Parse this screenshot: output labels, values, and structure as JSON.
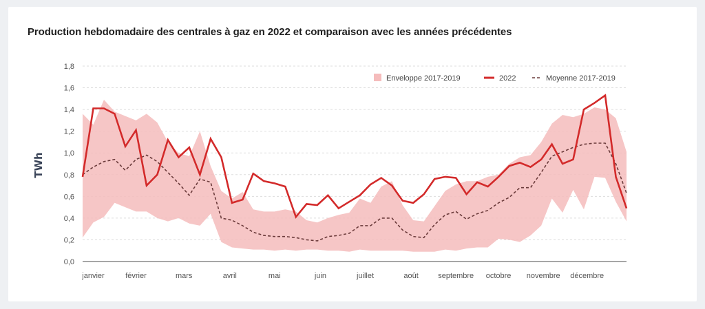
{
  "title": "Production hebdomadaire des centrales à gaz en 2022 et comparaison avec les années précédentes",
  "colors": {
    "line_2022": "#d32a2a",
    "envelope": "#f5bcbc",
    "mean": "#6b3b3b",
    "grid": "#dddddd",
    "axis": "#888888"
  },
  "chart_data": {
    "type": "line",
    "title": "Production hebdomadaire des centrales à gaz en 2022 et comparaison avec les années précédentes",
    "xlabel": "",
    "ylabel": "TWh",
    "ylim": [
      0,
      1.8
    ],
    "yticks": [
      "0,0",
      "0,2",
      "0,4",
      "0,6",
      "0,8",
      "1,0",
      "1,2",
      "1,4",
      "1,6",
      "1,8"
    ],
    "ytick_values": [
      0,
      0.2,
      0.4,
      0.6,
      0.8,
      1.0,
      1.2,
      1.4,
      1.6,
      1.8
    ],
    "grid": true,
    "legend_position": "top-right",
    "x_unit": "week",
    "month_labels": [
      "janvier",
      "février",
      "mars",
      "avril",
      "mai",
      "juin",
      "juillet",
      "août",
      "septembre",
      "octobre",
      "novembre",
      "décembre"
    ],
    "month_label_weeks": [
      2,
      6,
      10.5,
      14.8,
      19,
      23.3,
      27.5,
      31.8,
      36,
      40,
      44.2,
      48.3
    ],
    "x": [
      1,
      2,
      3,
      4,
      5,
      6,
      7,
      8,
      9,
      10,
      11,
      12,
      13,
      14,
      15,
      16,
      17,
      18,
      19,
      20,
      21,
      22,
      23,
      24,
      25,
      26,
      27,
      28,
      29,
      30,
      31,
      32,
      33,
      34,
      35,
      36,
      37,
      38,
      39,
      40,
      41,
      42,
      43,
      44,
      45,
      46,
      47,
      48,
      49,
      50,
      51,
      52
    ],
    "series": [
      {
        "name": "2022",
        "style": "solid",
        "values": [
          0.78,
          1.41,
          1.41,
          1.36,
          1.06,
          1.21,
          0.7,
          0.8,
          1.12,
          0.96,
          1.05,
          0.8,
          1.13,
          0.96,
          0.54,
          0.57,
          0.81,
          0.74,
          0.72,
          0.69,
          0.41,
          0.53,
          0.52,
          0.61,
          0.49,
          0.55,
          0.61,
          0.71,
          0.77,
          0.7,
          0.56,
          0.54,
          0.62,
          0.76,
          0.78,
          0.77,
          0.62,
          0.73,
          0.69,
          0.78,
          0.88,
          0.91,
          0.87,
          0.94,
          1.08,
          0.9,
          0.94,
          1.4,
          1.46,
          1.53,
          0.78,
          0.49
        ]
      },
      {
        "name": "Moyenne 2017-2019",
        "style": "dashed",
        "values": [
          0.8,
          0.87,
          0.92,
          0.94,
          0.84,
          0.94,
          0.98,
          0.92,
          0.82,
          0.72,
          0.61,
          0.76,
          0.73,
          0.4,
          0.38,
          0.33,
          0.27,
          0.24,
          0.23,
          0.23,
          0.22,
          0.2,
          0.19,
          0.23,
          0.24,
          0.26,
          0.33,
          0.33,
          0.4,
          0.4,
          0.29,
          0.23,
          0.22,
          0.34,
          0.43,
          0.46,
          0.39,
          0.44,
          0.47,
          0.54,
          0.59,
          0.68,
          0.68,
          0.82,
          0.97,
          1.01,
          1.05,
          1.08,
          1.09,
          1.09,
          0.9,
          0.63
        ]
      },
      {
        "name": "Enveloppe 2017-2019",
        "style": "band",
        "lower": [
          0.22,
          0.36,
          0.41,
          0.54,
          0.5,
          0.46,
          0.46,
          0.4,
          0.37,
          0.4,
          0.35,
          0.33,
          0.44,
          0.18,
          0.13,
          0.12,
          0.11,
          0.11,
          0.1,
          0.11,
          0.1,
          0.11,
          0.11,
          0.1,
          0.1,
          0.09,
          0.11,
          0.1,
          0.1,
          0.1,
          0.1,
          0.09,
          0.09,
          0.09,
          0.11,
          0.1,
          0.12,
          0.13,
          0.13,
          0.21,
          0.2,
          0.18,
          0.24,
          0.33,
          0.58,
          0.45,
          0.66,
          0.48,
          0.78,
          0.77,
          0.55,
          0.37
        ],
        "upper": [
          1.36,
          1.26,
          1.49,
          1.38,
          1.34,
          1.3,
          1.36,
          1.28,
          1.1,
          1.0,
          0.97,
          1.2,
          0.88,
          0.65,
          0.58,
          0.64,
          0.48,
          0.46,
          0.46,
          0.48,
          0.46,
          0.38,
          0.36,
          0.4,
          0.43,
          0.45,
          0.58,
          0.54,
          0.69,
          0.74,
          0.52,
          0.38,
          0.37,
          0.51,
          0.65,
          0.71,
          0.74,
          0.74,
          0.78,
          0.8,
          0.9,
          0.96,
          0.98,
          1.1,
          1.27,
          1.35,
          1.33,
          1.36,
          1.42,
          1.4,
          1.32,
          1.01
        ]
      }
    ]
  },
  "legend": {
    "items": [
      {
        "label": "Enveloppe 2017-2019",
        "kind": "band"
      },
      {
        "label": "2022",
        "kind": "solid"
      },
      {
        "label": "Moyenne 2017-2019",
        "kind": "dashed"
      }
    ]
  }
}
